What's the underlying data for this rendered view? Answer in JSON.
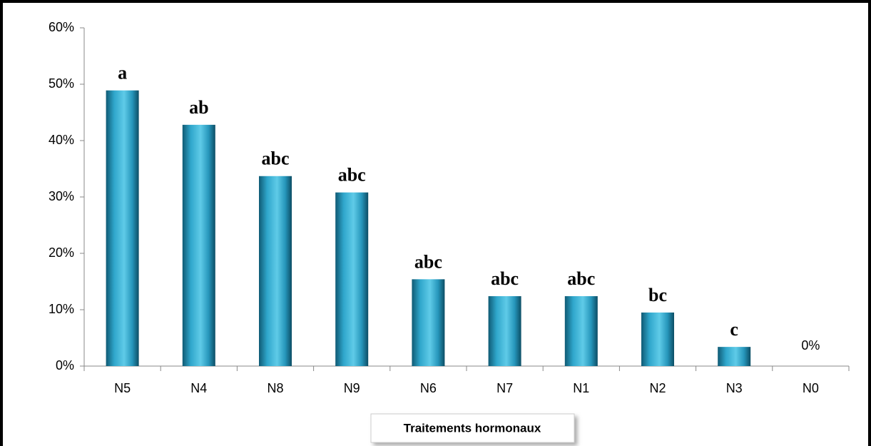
{
  "chart_data": {
    "type": "bar",
    "categories": [
      "N5",
      "N4",
      "N8",
      "N9",
      "N6",
      "N7",
      "N1",
      "N2",
      "N3",
      "N0"
    ],
    "values": [
      48.9,
      42.8,
      33.7,
      30.8,
      15.4,
      12.4,
      12.4,
      9.5,
      3.4,
      0
    ],
    "value_labels": [
      null,
      null,
      null,
      null,
      null,
      null,
      null,
      null,
      null,
      "0%"
    ],
    "annotations": [
      "a",
      "ab",
      "abc",
      "abc",
      "abc",
      "abc",
      "abc",
      "bc",
      "c",
      null
    ],
    "x_label": "Traitements hormonaux",
    "color": "#2a9cc0",
    "ylim": [
      0,
      60
    ],
    "yticks": [
      {
        "value": 0,
        "label": "0%"
      },
      {
        "value": 10,
        "label": "10%"
      },
      {
        "value": 20,
        "label": "20%"
      },
      {
        "value": 30,
        "label": "30%"
      },
      {
        "value": 40,
        "label": "40%"
      },
      {
        "value": 50,
        "label": "50%"
      },
      {
        "value": 60,
        "label": "60%"
      }
    ],
    "grid": false
  }
}
